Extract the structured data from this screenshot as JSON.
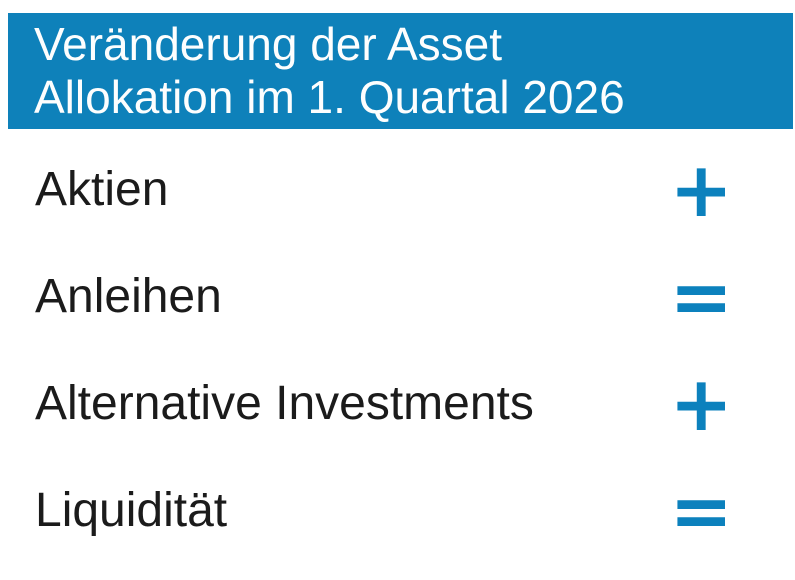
{
  "colors": {
    "header_background": "#0e81ba",
    "header_text": "#ffffff",
    "label_text": "#1b1b1b",
    "symbol_blue": "#0c81bd",
    "page_background": "#ffffff"
  },
  "header": {
    "title": "Veränderung der Asset Allokation im 1. Quartal 2026",
    "title_lines": [
      "Veränderung der Asset",
      "Allokation im 1. Quartal 2026"
    ]
  },
  "rows": [
    {
      "label": "Aktien",
      "symbol": "+"
    },
    {
      "label": "Anleihen",
      "symbol": "="
    },
    {
      "label": "Alternative Investments",
      "symbol": "+"
    },
    {
      "label": "Liquidität",
      "symbol": "="
    }
  ],
  "chart_data": {
    "type": "table",
    "title": "Veränderung der Asset Allokation im 1. Quartal 2026",
    "rows": [
      [
        "Aktien",
        "+"
      ],
      [
        "Anleihen",
        "="
      ],
      [
        "Alternative Investments",
        "+"
      ],
      [
        "Liquidität",
        "="
      ]
    ]
  }
}
